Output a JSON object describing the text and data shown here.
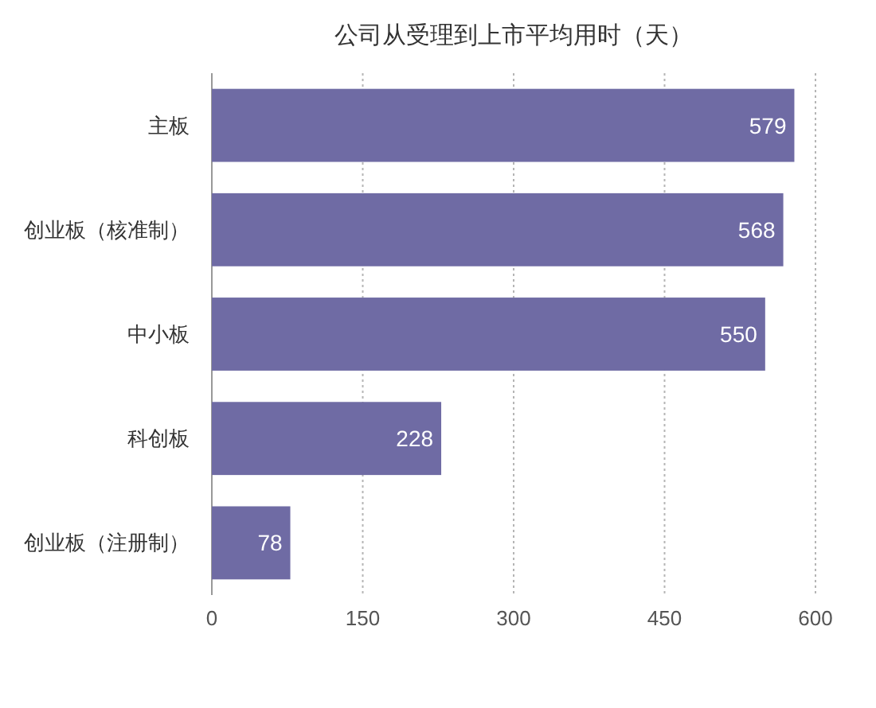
{
  "chart_data": {
    "type": "bar",
    "orientation": "horizontal",
    "title": "公司从受理到上市平均用时（天）",
    "categories": [
      "主板",
      "创业板（核准制）",
      "中小板",
      "科创板",
      "创业板（注册制）"
    ],
    "values": [
      579,
      568,
      550,
      228,
      78
    ],
    "color": "#6f6ba4",
    "xlim": [
      0,
      600
    ],
    "xticks": [
      0,
      150,
      300,
      450,
      600
    ],
    "grid": "x",
    "data_labels": true
  }
}
